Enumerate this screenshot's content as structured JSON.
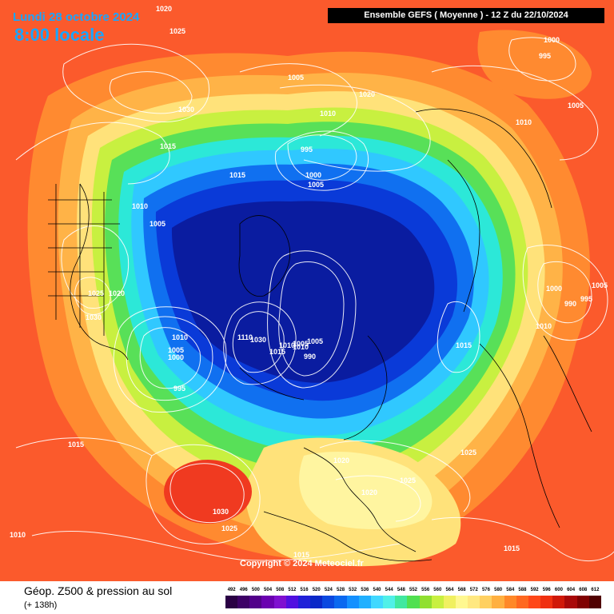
{
  "header": {
    "date": "Lundi 28 octobre 2024",
    "time": "8:00 locale",
    "model": "Ensemble GEFS  ( Moyenne )  -  12 Z du 22/10/2024"
  },
  "copyright": "Copyright © 2024 Meteociel.fr",
  "footer": {
    "parameter": "Géop. Z500 & pression au sol",
    "lead_time": "(+ 138h)"
  },
  "scale": {
    "values": [
      "492",
      "496",
      "500",
      "504",
      "508",
      "512",
      "516",
      "520",
      "524",
      "528",
      "532",
      "536",
      "540",
      "544",
      "548",
      "552",
      "556",
      "560",
      "564",
      "568",
      "572",
      "576",
      "580",
      "584",
      "588",
      "592",
      "596",
      "600",
      "604",
      "608",
      "612"
    ],
    "colors": [
      "#2a0044",
      "#3d0066",
      "#52008a",
      "#6a00b0",
      "#7f10d0",
      "#5010e0",
      "#2020d8",
      "#0a28c8",
      "#0a48e0",
      "#0a68f0",
      "#1490ff",
      "#20b0ff",
      "#40d8ff",
      "#50f0e8",
      "#40e8a0",
      "#50e050",
      "#90e030",
      "#c8f040",
      "#f0f060",
      "#fff890",
      "#ffe880",
      "#ffd060",
      "#ffb040",
      "#ff8828",
      "#ff6820",
      "#ff4818",
      "#f03010",
      "#d01808",
      "#a80808",
      "#800000",
      "#500000"
    ]
  },
  "map": {
    "colors": {
      "warm": "#fb5a2c",
      "orange": "#ff8a30",
      "light_orange": "#ffb347",
      "yellow": "#ffe27a",
      "pale_yellow": "#fff5a0",
      "lime": "#c8f040",
      "green": "#58e058",
      "aqua": "#2ce8d8",
      "cyan": "#30c8ff",
      "blue": "#1070f0",
      "deep_blue": "#0a3ad8",
      "navy": "#0a1ca0",
      "isobar": "#ffffff",
      "coast": "#000000"
    },
    "isobar_labels": [
      {
        "text": "1020"
      },
      {
        "text": "1025"
      },
      {
        "text": "1030"
      },
      {
        "text": "1015"
      },
      {
        "text": "1015"
      },
      {
        "text": "1010"
      },
      {
        "text": "1005"
      },
      {
        "text": "1025"
      },
      {
        "text": "1020"
      },
      {
        "text": "1030"
      },
      {
        "text": "1005"
      },
      {
        "text": "1020"
      },
      {
        "text": "1015"
      },
      {
        "text": "1010"
      },
      {
        "text": "995"
      },
      {
        "text": "1000"
      },
      {
        "text": "1005"
      },
      {
        "text": "1000"
      },
      {
        "text": "995"
      },
      {
        "text": "1005"
      },
      {
        "text": "1010"
      },
      {
        "text": "1000"
      },
      {
        "text": "990"
      },
      {
        "text": "1005"
      },
      {
        "text": "995"
      },
      {
        "text": "1010"
      },
      {
        "text": "1015"
      },
      {
        "text": "1010"
      },
      {
        "text": "1005"
      },
      {
        "text": "1000"
      },
      {
        "text": "995"
      },
      {
        "text": "1110"
      },
      {
        "text": "1030"
      },
      {
        "text": "1015"
      },
      {
        "text": "1010"
      },
      {
        "text": "1005"
      },
      {
        "text": "1005"
      },
      {
        "text": "990"
      },
      {
        "text": "1015"
      },
      {
        "text": "1020"
      },
      {
        "text": "1020"
      },
      {
        "text": "1025"
      },
      {
        "text": "1025"
      },
      {
        "text": "1015"
      },
      {
        "text": "1030"
      },
      {
        "text": "1025"
      },
      {
        "text": "1010"
      },
      {
        "text": "1015"
      },
      {
        "text": "1010"
      }
    ]
  }
}
